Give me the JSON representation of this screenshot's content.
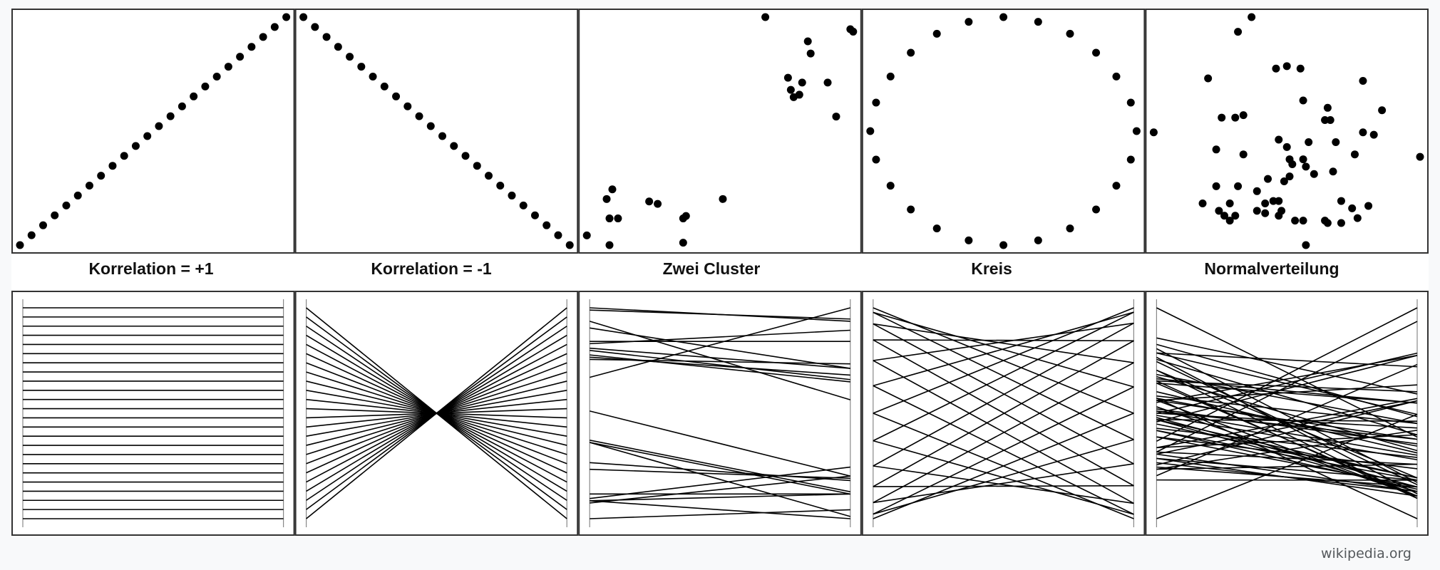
{
  "source": "wikipedia.org",
  "colors": {
    "ink": "#000000",
    "frame": "#333333",
    "background": "#ffffff"
  },
  "chart_data": [
    {
      "type": "scatter",
      "title": "Korrelation = +1",
      "points": [
        [
          1,
          1
        ],
        [
          2,
          2
        ],
        [
          3,
          3
        ],
        [
          4,
          4
        ],
        [
          5,
          5
        ],
        [
          6,
          6
        ],
        [
          7,
          7
        ],
        [
          8,
          8
        ],
        [
          9,
          9
        ],
        [
          10,
          10
        ],
        [
          11,
          11
        ],
        [
          12,
          12
        ],
        [
          13,
          13
        ],
        [
          14,
          14
        ],
        [
          15,
          15
        ],
        [
          16,
          16
        ],
        [
          17,
          17
        ],
        [
          18,
          18
        ],
        [
          19,
          19
        ],
        [
          20,
          20
        ],
        [
          21,
          21
        ],
        [
          22,
          22
        ],
        [
          23,
          23
        ],
        [
          24,
          24
        ]
      ]
    },
    {
      "type": "scatter",
      "title": "Korrelation = -1",
      "points": [
        [
          1,
          24
        ],
        [
          2,
          23
        ],
        [
          3,
          22
        ],
        [
          4,
          21
        ],
        [
          5,
          20
        ],
        [
          6,
          19
        ],
        [
          7,
          18
        ],
        [
          8,
          17
        ],
        [
          9,
          16
        ],
        [
          10,
          15
        ],
        [
          11,
          14
        ],
        [
          12,
          13
        ],
        [
          13,
          12
        ],
        [
          14,
          11
        ],
        [
          15,
          10
        ],
        [
          16,
          9
        ],
        [
          17,
          8
        ],
        [
          18,
          7
        ],
        [
          19,
          6
        ],
        [
          20,
          5
        ],
        [
          21,
          4
        ],
        [
          22,
          3
        ],
        [
          23,
          2
        ],
        [
          24,
          1
        ]
      ]
    },
    {
      "type": "scatter",
      "title": "Zwei Cluster",
      "points": [
        [
          0.03,
          0.08
        ],
        [
          0.11,
          0.04
        ],
        [
          0.11,
          0.15
        ],
        [
          0.14,
          0.15
        ],
        [
          0.1,
          0.23
        ],
        [
          0.12,
          0.27
        ],
        [
          0.25,
          0.22
        ],
        [
          0.28,
          0.21
        ],
        [
          0.37,
          0.15
        ],
        [
          0.38,
          0.16
        ],
        [
          0.37,
          0.05
        ],
        [
          0.51,
          0.23
        ],
        [
          0.66,
          0.98
        ],
        [
          0.81,
          0.88
        ],
        [
          0.82,
          0.83
        ],
        [
          0.74,
          0.73
        ],
        [
          0.75,
          0.68
        ],
        [
          0.76,
          0.65
        ],
        [
          0.78,
          0.66
        ],
        [
          0.79,
          0.71
        ],
        [
          0.88,
          0.71
        ],
        [
          0.91,
          0.57
        ],
        [
          0.96,
          0.93
        ],
        [
          0.97,
          0.92
        ]
      ]
    },
    {
      "type": "scatter",
      "title": "Kreis",
      "points": [
        [
          0.5,
          0.98
        ],
        [
          0.62,
          0.96
        ],
        [
          0.73,
          0.91
        ],
        [
          0.82,
          0.83
        ],
        [
          0.89,
          0.73
        ],
        [
          0.94,
          0.62
        ],
        [
          0.96,
          0.5
        ],
        [
          0.94,
          0.38
        ],
        [
          0.89,
          0.27
        ],
        [
          0.82,
          0.17
        ],
        [
          0.73,
          0.09
        ],
        [
          0.62,
          0.04
        ],
        [
          0.5,
          0.02
        ],
        [
          0.38,
          0.04
        ],
        [
          0.27,
          0.09
        ],
        [
          0.18,
          0.17
        ],
        [
          0.11,
          0.27
        ],
        [
          0.06,
          0.38
        ],
        [
          0.04,
          0.5
        ],
        [
          0.06,
          0.62
        ],
        [
          0.11,
          0.73
        ],
        [
          0.18,
          0.83
        ],
        [
          0.27,
          0.91
        ],
        [
          0.38,
          0.96
        ]
      ]
    },
    {
      "type": "scatter",
      "title": "Normalverteilung",
      "points": [
        [
          0.37,
          0.97
        ],
        [
          0.32,
          0.91
        ],
        [
          0.21,
          0.72
        ],
        [
          0.46,
          0.76
        ],
        [
          0.5,
          0.77
        ],
        [
          0.55,
          0.76
        ],
        [
          0.78,
          0.71
        ],
        [
          0.26,
          0.56
        ],
        [
          0.31,
          0.56
        ],
        [
          0.34,
          0.57
        ],
        [
          0.56,
          0.63
        ],
        [
          0.65,
          0.6
        ],
        [
          0.64,
          0.55
        ],
        [
          0.66,
          0.55
        ],
        [
          0.85,
          0.59
        ],
        [
          0.01,
          0.5
        ],
        [
          0.47,
          0.47
        ],
        [
          0.5,
          0.44
        ],
        [
          0.58,
          0.46
        ],
        [
          0.68,
          0.46
        ],
        [
          0.82,
          0.49
        ],
        [
          0.78,
          0.5
        ],
        [
          0.24,
          0.43
        ],
        [
          0.34,
          0.41
        ],
        [
          0.51,
          0.39
        ],
        [
          0.52,
          0.37
        ],
        [
          0.56,
          0.39
        ],
        [
          0.57,
          0.36
        ],
        [
          0.67,
          0.34
        ],
        [
          0.75,
          0.41
        ],
        [
          0.99,
          0.4
        ],
        [
          0.51,
          0.32
        ],
        [
          0.6,
          0.33
        ],
        [
          0.49,
          0.3
        ],
        [
          0.43,
          0.31
        ],
        [
          0.39,
          0.26
        ],
        [
          0.24,
          0.28
        ],
        [
          0.32,
          0.28
        ],
        [
          0.45,
          0.22
        ],
        [
          0.42,
          0.21
        ],
        [
          0.47,
          0.22
        ],
        [
          0.48,
          0.18
        ],
        [
          0.47,
          0.16
        ],
        [
          0.42,
          0.17
        ],
        [
          0.39,
          0.18
        ],
        [
          0.19,
          0.21
        ],
        [
          0.29,
          0.21
        ],
        [
          0.31,
          0.16
        ],
        [
          0.29,
          0.14
        ],
        [
          0.25,
          0.18
        ],
        [
          0.27,
          0.16
        ],
        [
          0.7,
          0.22
        ],
        [
          0.74,
          0.19
        ],
        [
          0.8,
          0.2
        ],
        [
          0.64,
          0.14
        ],
        [
          0.65,
          0.13
        ],
        [
          0.53,
          0.14
        ],
        [
          0.56,
          0.14
        ],
        [
          0.7,
          0.13
        ],
        [
          0.76,
          0.15
        ],
        [
          0.57,
          0.04
        ]
      ]
    }
  ]
}
